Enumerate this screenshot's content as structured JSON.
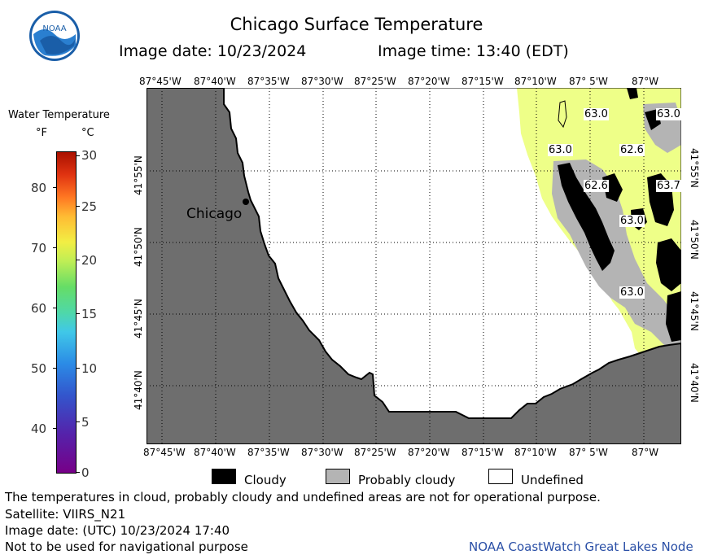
{
  "header": {
    "title": "Chicago Surface Temperature",
    "image_date": "Image date: 10/23/2024",
    "image_time": "Image time: 13:40 (EDT)",
    "logo_text": "NOAA"
  },
  "legend": {
    "title": "Water Temperature",
    "unit_f": "°F",
    "unit_c": "°C",
    "f_ticks": [
      "80",
      "70",
      "60",
      "50",
      "40"
    ],
    "c_ticks": [
      "30",
      "25",
      "20",
      "15",
      "10",
      "5",
      "0"
    ]
  },
  "map": {
    "lon_labels": [
      "87°45'W",
      "87°40'W",
      "87°35'W",
      "87°30'W",
      "87°25'W",
      "87°20'W",
      "87°15'W",
      "87°10'W",
      "87° 5'W",
      "87°W"
    ],
    "lat_labels": [
      "41°55'N",
      "41°50'N",
      "41°45'N",
      "41°40'N"
    ],
    "city_label": "Chicago",
    "temperature_labels": [
      "63.0",
      "63.0",
      "63.0",
      "62.6",
      "62.6",
      "63.7",
      "63.0",
      "63.0"
    ],
    "colors": {
      "land": "#6e6e6e",
      "warm_water": "#eeff88",
      "cloudy": "#000000",
      "probably_cloudy": "#b4b4b4",
      "undefined": "#ffffff"
    }
  },
  "key": {
    "cloudy": "Cloudy",
    "probably_cloudy": "Probably cloudy",
    "undefined": "Undefined"
  },
  "footer": {
    "disclaimer": "The temperatures in cloud, probably cloudy and undefined areas are not for operational purpose.",
    "satellite": "Satellite: VIIRS_N21",
    "utc_date": "Image date: (UTC) 10/23/2024  17:40",
    "nav_note": "Not to be used for navigational purpose",
    "node": "NOAA CoastWatch Great Lakes Node"
  }
}
